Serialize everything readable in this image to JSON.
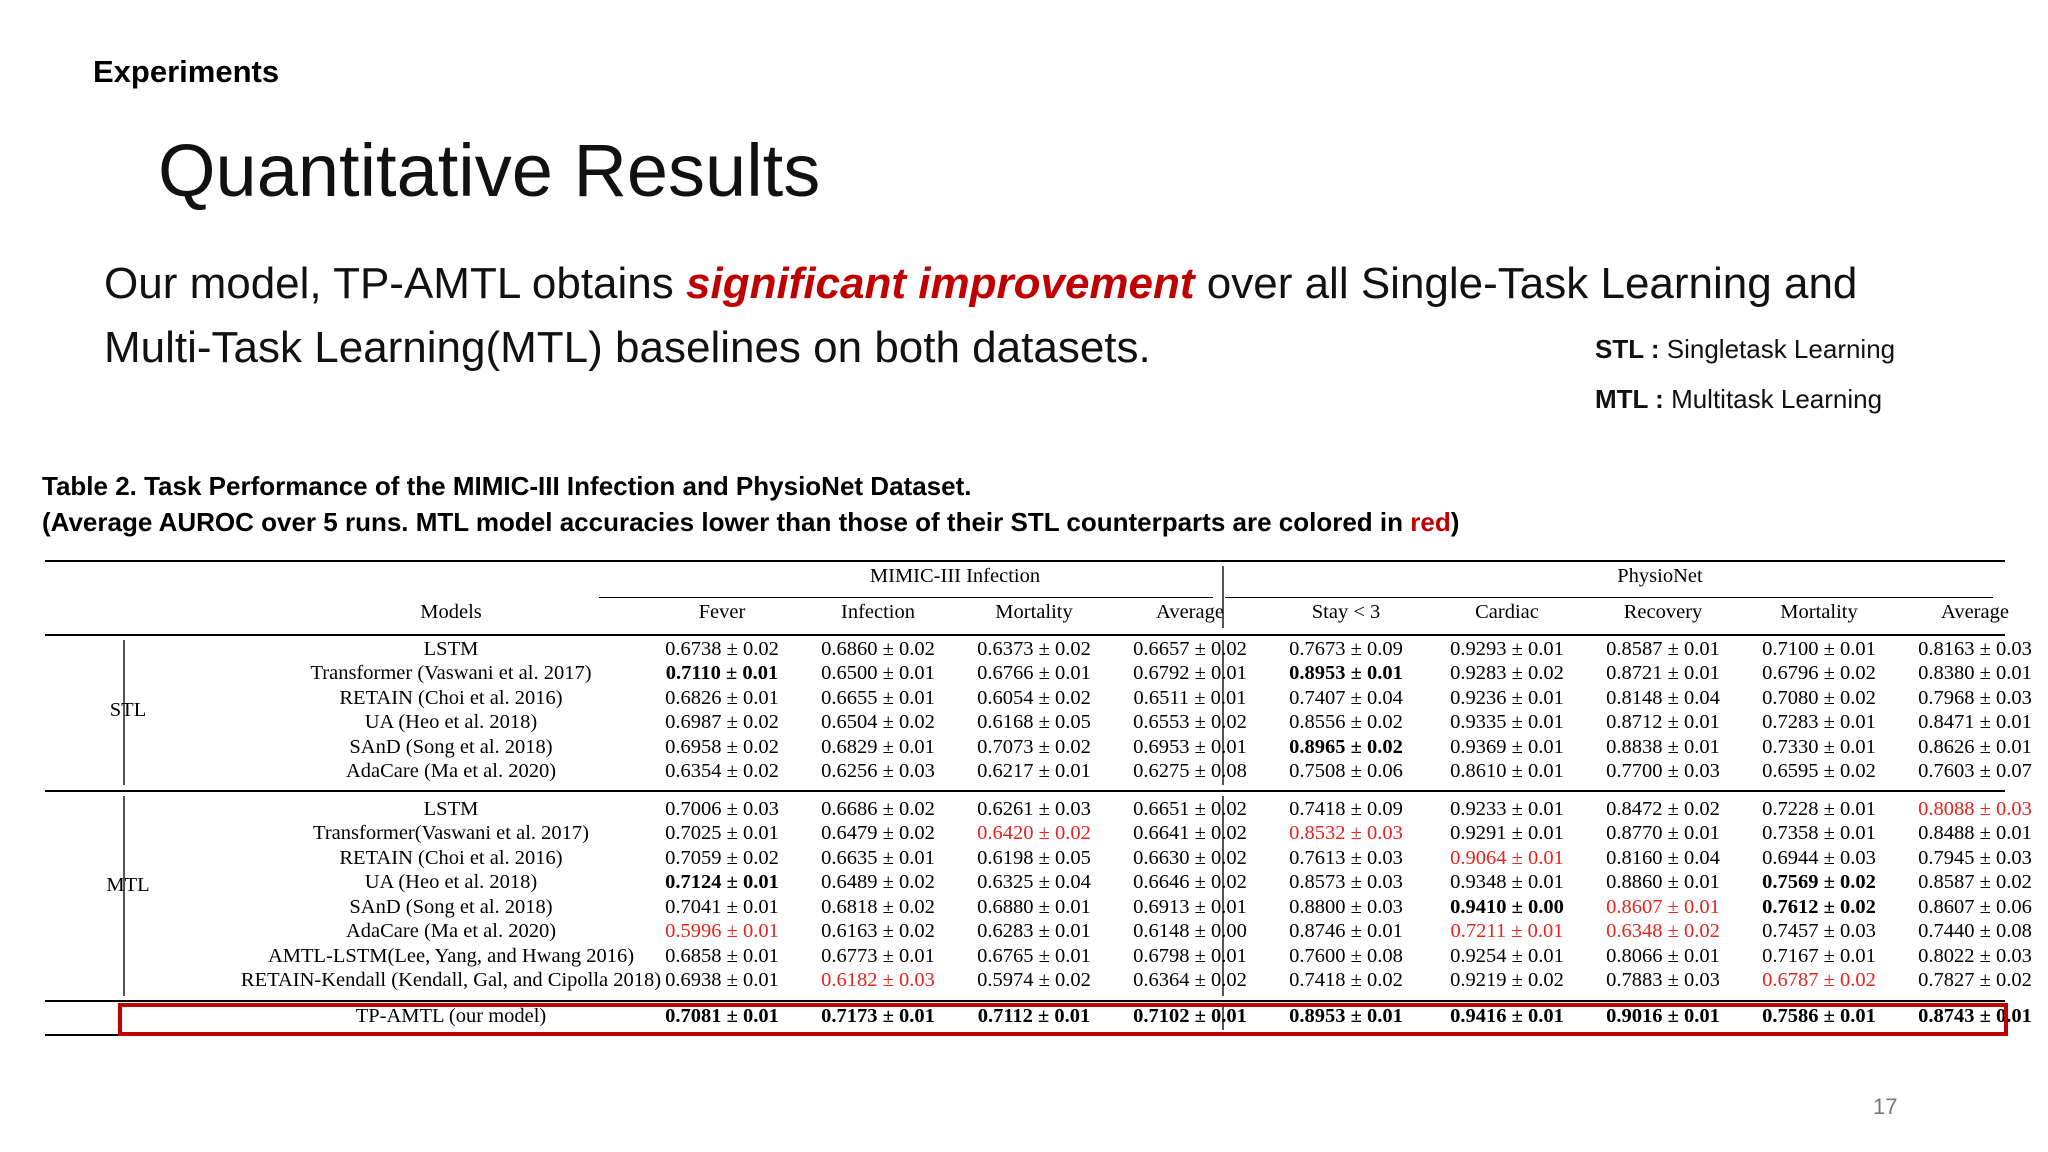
{
  "section": "Experiments",
  "title": "Quantitative Results",
  "lead": {
    "before": "Our model, TP-AMTL obtains ",
    "highlight": "significant improvement",
    "after_line1": " over all Single-Task Learning and",
    "line2": "Multi-Task Learning(MTL) baselines on both datasets."
  },
  "abbreviations": [
    {
      "key": "STL :",
      "value": " Singletask Learning"
    },
    {
      "key": "MTL :",
      "value": " Multitask Learning"
    }
  ],
  "caption": {
    "line1": "Table 2. Task Performance of the MIMIC-III Infection and PhysioNet Dataset.",
    "line2_pre": "(Average AUROC over 5 runs. MTL model accuracies lower than those of their STL counterparts are colored in ",
    "line2_red": "red",
    "line2_post": ")"
  },
  "table": {
    "groups": [
      {
        "label": "MIMIC-III Infection"
      },
      {
        "label": "PhysioNet"
      }
    ],
    "models_header": "Models",
    "columns": [
      "Fever",
      "Infection",
      "Mortality",
      "Average",
      "Stay < 3",
      "Cardiac",
      "Recovery",
      "Mortality",
      "Average"
    ],
    "sections": [
      {
        "label": "STL",
        "rows": [
          {
            "model": "LSTM",
            "cells": [
              {
                "v": "0.6738 ± 0.02"
              },
              {
                "v": "0.6860 ± 0.02"
              },
              {
                "v": "0.6373 ± 0.02"
              },
              {
                "v": "0.6657 ± 0.02"
              },
              {
                "v": "0.7673 ± 0.09"
              },
              {
                "v": "0.9293 ± 0.01"
              },
              {
                "v": "0.8587 ± 0.01"
              },
              {
                "v": "0.7100 ± 0.01"
              },
              {
                "v": "0.8163 ± 0.03"
              }
            ]
          },
          {
            "model": "Transformer (Vaswani et al. 2017)",
            "cells": [
              {
                "v": "0.7110 ± 0.01",
                "s": "bold"
              },
              {
                "v": "0.6500 ± 0.01"
              },
              {
                "v": "0.6766 ± 0.01"
              },
              {
                "v": "0.6792 ± 0.01"
              },
              {
                "v": "0.8953 ± 0.01",
                "s": "bold"
              },
              {
                "v": "0.9283 ± 0.02"
              },
              {
                "v": "0.8721 ± 0.01"
              },
              {
                "v": "0.6796 ± 0.02"
              },
              {
                "v": "0.8380 ± 0.01"
              }
            ]
          },
          {
            "model": "RETAIN (Choi et al. 2016)",
            "cells": [
              {
                "v": "0.6826 ± 0.01"
              },
              {
                "v": "0.6655 ± 0.01"
              },
              {
                "v": "0.6054 ± 0.02"
              },
              {
                "v": "0.6511 ± 0.01"
              },
              {
                "v": "0.7407 ± 0.04"
              },
              {
                "v": "0.9236 ± 0.01"
              },
              {
                "v": "0.8148 ± 0.04"
              },
              {
                "v": "0.7080 ± 0.02"
              },
              {
                "v": "0.7968 ± 0.03"
              }
            ]
          },
          {
            "model": "UA (Heo et al. 2018)",
            "cells": [
              {
                "v": "0.6987 ± 0.02"
              },
              {
                "v": "0.6504 ± 0.02"
              },
              {
                "v": "0.6168 ± 0.05"
              },
              {
                "v": "0.6553 ± 0.02"
              },
              {
                "v": "0.8556 ± 0.02"
              },
              {
                "v": "0.9335 ± 0.01"
              },
              {
                "v": "0.8712 ± 0.01"
              },
              {
                "v": "0.7283 ± 0.01"
              },
              {
                "v": "0.8471 ± 0.01"
              }
            ]
          },
          {
            "model": "SAnD (Song et al. 2018)",
            "cells": [
              {
                "v": "0.6958 ± 0.02"
              },
              {
                "v": "0.6829 ± 0.01"
              },
              {
                "v": "0.7073 ± 0.02"
              },
              {
                "v": "0.6953 ± 0.01"
              },
              {
                "v": "0.8965 ± 0.02",
                "s": "bold"
              },
              {
                "v": "0.9369 ± 0.01"
              },
              {
                "v": "0.8838 ± 0.01"
              },
              {
                "v": "0.7330 ± 0.01"
              },
              {
                "v": "0.8626 ± 0.01"
              }
            ]
          },
          {
            "model": "AdaCare (Ma et al. 2020)",
            "cells": [
              {
                "v": "0.6354 ± 0.02"
              },
              {
                "v": "0.6256 ± 0.03"
              },
              {
                "v": "0.6217 ± 0.01"
              },
              {
                "v": "0.6275 ± 0.08"
              },
              {
                "v": "0.7508 ± 0.06"
              },
              {
                "v": "0.8610 ± 0.01"
              },
              {
                "v": "0.7700 ± 0.03"
              },
              {
                "v": "0.6595 ± 0.02"
              },
              {
                "v": "0.7603 ± 0.07"
              }
            ]
          }
        ]
      },
      {
        "label": "MTL",
        "rows": [
          {
            "model": "LSTM",
            "cells": [
              {
                "v": "0.7006 ± 0.03"
              },
              {
                "v": "0.6686 ± 0.02"
              },
              {
                "v": "0.6261 ± 0.03"
              },
              {
                "v": "0.6651 ± 0.02"
              },
              {
                "v": "0.7418 ± 0.09"
              },
              {
                "v": "0.9233 ± 0.01"
              },
              {
                "v": "0.8472 ± 0.02"
              },
              {
                "v": "0.7228 ± 0.01"
              },
              {
                "v": "0.8088 ± 0.03",
                "s": "red"
              }
            ]
          },
          {
            "model": "Transformer(Vaswani et al. 2017)",
            "cells": [
              {
                "v": "0.7025 ± 0.01"
              },
              {
                "v": "0.6479 ± 0.02"
              },
              {
                "v": "0.6420 ± 0.02",
                "s": "red"
              },
              {
                "v": "0.6641 ± 0.02"
              },
              {
                "v": "0.8532 ± 0.03",
                "s": "red"
              },
              {
                "v": "0.9291 ± 0.01"
              },
              {
                "v": "0.8770 ± 0.01"
              },
              {
                "v": "0.7358 ± 0.01"
              },
              {
                "v": "0.8488 ± 0.01"
              }
            ]
          },
          {
            "model": "RETAIN (Choi et al. 2016)",
            "cells": [
              {
                "v": "0.7059 ± 0.02"
              },
              {
                "v": "0.6635 ± 0.01"
              },
              {
                "v": "0.6198 ± 0.05"
              },
              {
                "v": "0.6630 ± 0.02"
              },
              {
                "v": "0.7613 ± 0.03"
              },
              {
                "v": "0.9064 ± 0.01",
                "s": "red"
              },
              {
                "v": "0.8160 ± 0.04"
              },
              {
                "v": "0.6944 ± 0.03"
              },
              {
                "v": "0.7945 ± 0.03"
              }
            ]
          },
          {
            "model": "UA (Heo et al. 2018)",
            "cells": [
              {
                "v": "0.7124 ± 0.01",
                "s": "bold"
              },
              {
                "v": "0.6489 ± 0.02"
              },
              {
                "v": "0.6325 ± 0.04"
              },
              {
                "v": "0.6646 ± 0.02"
              },
              {
                "v": "0.8573 ± 0.03"
              },
              {
                "v": "0.9348 ± 0.01"
              },
              {
                "v": "0.8860 ± 0.01"
              },
              {
                "v": "0.7569 ± 0.02",
                "s": "bold"
              },
              {
                "v": "0.8587 ± 0.02"
              }
            ]
          },
          {
            "model": "SAnD (Song et al. 2018)",
            "cells": [
              {
                "v": "0.7041 ± 0.01"
              },
              {
                "v": "0.6818 ± 0.02"
              },
              {
                "v": "0.6880 ± 0.01"
              },
              {
                "v": "0.6913 ± 0.01"
              },
              {
                "v": "0.8800 ± 0.03"
              },
              {
                "v": "0.9410 ± 0.00",
                "s": "bold"
              },
              {
                "v": "0.8607 ± 0.01",
                "s": "red"
              },
              {
                "v": "0.7612 ± 0.02",
                "s": "bold"
              },
              {
                "v": "0.8607 ± 0.06"
              }
            ]
          },
          {
            "model": "AdaCare (Ma et al. 2020)",
            "cells": [
              {
                "v": "0.5996 ± 0.01",
                "s": "red"
              },
              {
                "v": "0.6163 ± 0.02"
              },
              {
                "v": "0.6283 ± 0.01"
              },
              {
                "v": "0.6148 ± 0.00"
              },
              {
                "v": "0.8746 ± 0.01"
              },
              {
                "v": "0.7211 ± 0.01",
                "s": "red"
              },
              {
                "v": "0.6348 ± 0.02",
                "s": "red"
              },
              {
                "v": "0.7457 ± 0.03"
              },
              {
                "v": "0.7440 ± 0.08"
              }
            ]
          },
          {
            "model": "AMTL-LSTM(Lee, Yang, and Hwang 2016)",
            "cells": [
              {
                "v": "0.6858 ± 0.01"
              },
              {
                "v": "0.6773 ± 0.01"
              },
              {
                "v": "0.6765 ± 0.01"
              },
              {
                "v": "0.6798 ± 0.01"
              },
              {
                "v": "0.7600 ± 0.08"
              },
              {
                "v": "0.9254 ± 0.01"
              },
              {
                "v": "0.8066 ± 0.01"
              },
              {
                "v": "0.7167 ± 0.01"
              },
              {
                "v": "0.8022 ± 0.03"
              }
            ]
          },
          {
            "model": "RETAIN-Kendall (Kendall, Gal, and Cipolla 2018)",
            "cells": [
              {
                "v": "0.6938 ± 0.01"
              },
              {
                "v": "0.6182 ± 0.03",
                "s": "red"
              },
              {
                "v": "0.5974 ± 0.02"
              },
              {
                "v": "0.6364 ± 0.02"
              },
              {
                "v": "0.7418 ± 0.02"
              },
              {
                "v": "0.9219 ± 0.02"
              },
              {
                "v": "0.7883 ± 0.03"
              },
              {
                "v": "0.6787 ± 0.02",
                "s": "red"
              },
              {
                "v": "0.7827 ± 0.02"
              }
            ]
          }
        ]
      }
    ],
    "ours": {
      "model": "TP-AMTL (our model)",
      "cells": [
        {
          "v": "0.7081 ± 0.01",
          "s": "bold"
        },
        {
          "v": "0.7173 ± 0.01",
          "s": "bold"
        },
        {
          "v": "0.7112 ± 0.01",
          "s": "bold"
        },
        {
          "v": "0.7102 ± 0.01",
          "s": "bold"
        },
        {
          "v": "0.8953 ± 0.01",
          "s": "bold"
        },
        {
          "v": "0.9416 ± 0.01",
          "s": "bold"
        },
        {
          "v": "0.9016 ± 0.01",
          "s": "bold"
        },
        {
          "v": "0.7586 ± 0.01",
          "s": "bold"
        },
        {
          "v": "0.8743 ± 0.01",
          "s": "bold"
        }
      ]
    }
  },
  "colors": {
    "highlight": "#c00000",
    "worse_than_stl": "#e8231e",
    "box": "#c00000"
  },
  "page_number": "17"
}
